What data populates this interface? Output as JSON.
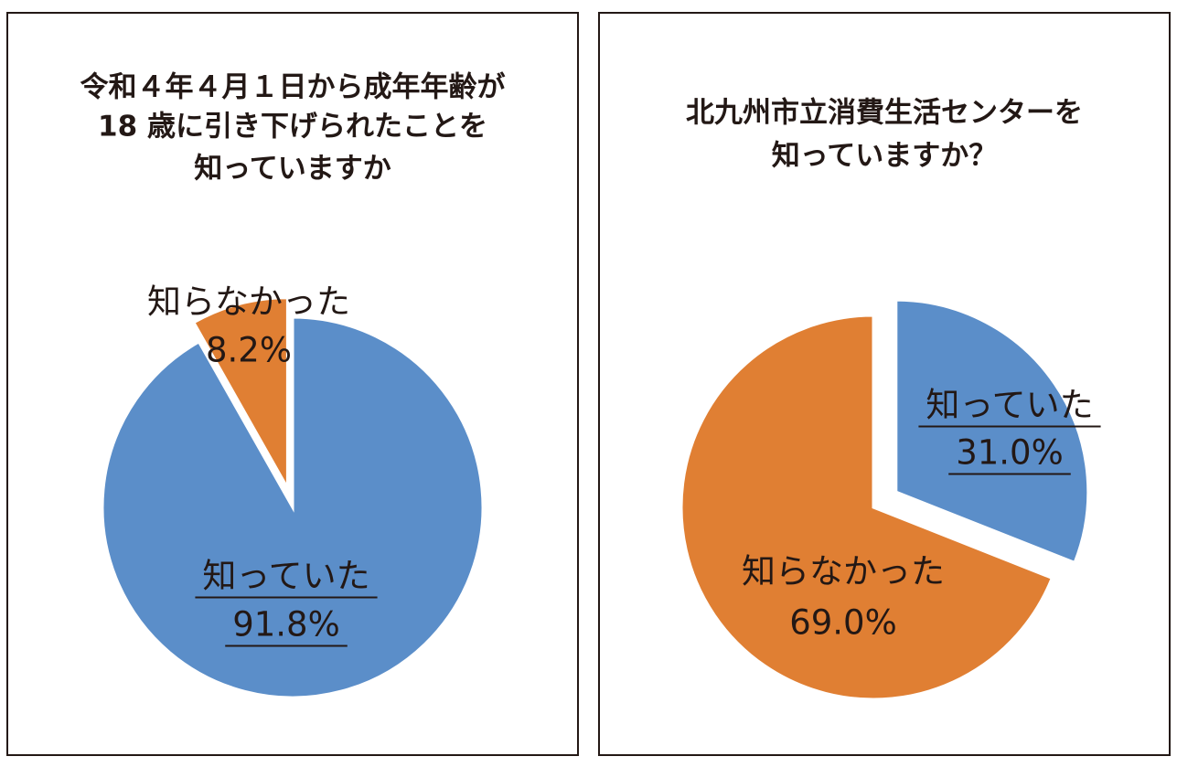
{
  "chart_data": [
    {
      "type": "pie",
      "title": [
        "令和４年４月１日から成年年齢が",
        "18 歳に引き下げられたことを",
        "知っていますか"
      ],
      "categories": [
        "知っていた",
        "知らなかった"
      ],
      "values": [
        91.8,
        8.2
      ],
      "value_labels": [
        "91.8%",
        "8.2%"
      ],
      "colors": [
        "#5b8ec9",
        "#e07f33"
      ]
    },
    {
      "type": "pie",
      "title": [
        "北九州市立消費生活センターを",
        "知っていますか？"
      ],
      "categories": [
        "知っていた",
        "知らなかった"
      ],
      "values": [
        31.0,
        69.0
      ],
      "value_labels": [
        "31.0%",
        "69.0%"
      ],
      "colors": [
        "#5b8ec9",
        "#e07f33"
      ]
    }
  ]
}
